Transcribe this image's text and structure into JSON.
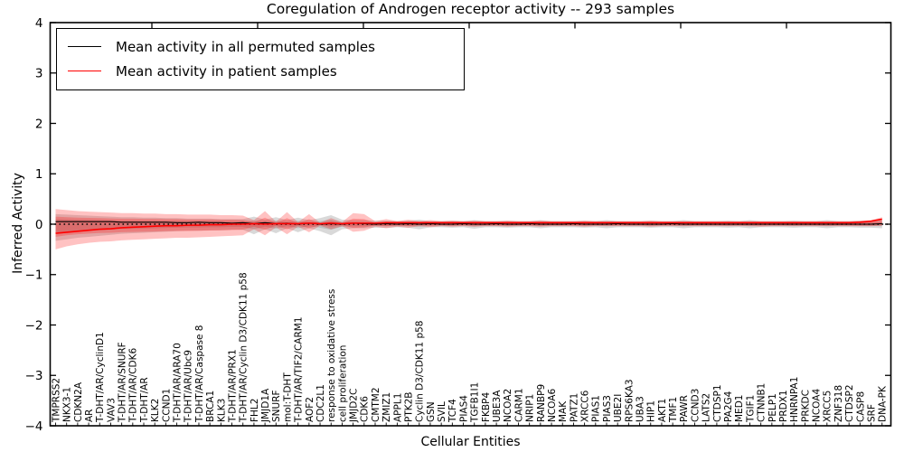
{
  "figure": {
    "title": "Coregulation of Androgen receptor activity -- 293 samples"
  },
  "legend": {
    "items": [
      {
        "label": "Mean activity in all permuted samples",
        "color": "#000000"
      },
      {
        "label": "Mean activity in patient samples",
        "color": "#ff0000"
      }
    ]
  },
  "chart_data": {
    "type": "line",
    "title": "Coregulation of Androgen receptor activity -- 293 samples",
    "xlabel": "Cellular Entities",
    "ylabel": "Inferred Activity",
    "ylim": [
      -4,
      4
    ],
    "yticks": [
      4,
      3,
      2,
      1,
      0,
      -1,
      -2,
      -3,
      -4
    ],
    "ytick_labels": [
      "4",
      "3",
      "2",
      "1",
      "0",
      "−1",
      "−2",
      "−3",
      "−4"
    ],
    "grid": false,
    "legend_position": "upper left",
    "zero_line": true,
    "categories": [
      "TMPRSS2",
      "NKX3-1",
      "CDKN2A",
      "AR",
      "T-DHT/AR/CyclinD1",
      "VAV3",
      "T-DHT/AR/SNURF",
      "T-DHT/AR/CDK6",
      "T-DHT/AR",
      "KLK2",
      "CCND1",
      "T-DHT/AR/ARA70",
      "T-DHT/AR/Ubc9",
      "T-DHT/AR/Caspase 8",
      "BRCA1",
      "KLK3",
      "T-DHT/AR/PRX1",
      "T-DHT/AR/Cyclin D3/CDK11 p58",
      "FHL2",
      "JMJD1A",
      "SNURF",
      "mol:T-DHT",
      "T-DHT/AR/TIF2/CARM1",
      "AOF2",
      "CDC2L1",
      "response to oxidative stress",
      "cell proliferation",
      "JMJD2C",
      "CDK6",
      "CMTM2",
      "ZMIZ1",
      "APPL1",
      "PTK2B",
      "Cyclin D3/CDK11 p58",
      "GSN",
      "SVIL",
      "TCF4",
      "PIAS4",
      "TGFB1I1",
      "FKBP4",
      "UBE3A",
      "NCOA2",
      "CARM1",
      "NRIP1",
      "RANBP9",
      "NCOA6",
      "MAK",
      "PATZ1",
      "XRCC6",
      "PIAS1",
      "PIAS3",
      "UBE2I",
      "RPS6KA3",
      "UBA3",
      "HIP1",
      "AKT1",
      "TMF1",
      "PAWR",
      "CCND3",
      "LATS2",
      "CTDSP1",
      "PA2G4",
      "MED1",
      "TGIF1",
      "CTNNB1",
      "PELP1",
      "PRDX1",
      "HNRNPA1",
      "PRKDC",
      "NCOA4",
      "XRCC5",
      "ZNF318",
      "CTDSP2",
      "CASP8",
      "SRF",
      "DNA-PK"
    ],
    "series": [
      {
        "name": "Mean activity in all permuted samples",
        "color": "#000000",
        "values": [
          0.05,
          0.05,
          0.05,
          0.05,
          0.05,
          0.05,
          0.04,
          0.04,
          0.04,
          0.04,
          0.04,
          0.03,
          0.03,
          0.04,
          0.03,
          0.03,
          0.02,
          0.03,
          0.01,
          0.03,
          0.01,
          0.02,
          0,
          0.02,
          0,
          0.01,
          0,
          0.02,
          0.01,
          0,
          0.01,
          0,
          0.01,
          0,
          0.01,
          0,
          0,
          0.01,
          0,
          0,
          0.01,
          0,
          0,
          0.01,
          0,
          0,
          0,
          0.01,
          0,
          0,
          0,
          0.01,
          0,
          0,
          0,
          0,
          0.01,
          0,
          0,
          0,
          0,
          0,
          0,
          0,
          0,
          0,
          0,
          0,
          0,
          0,
          0,
          0,
          0,
          0,
          0,
          0.01
        ]
      },
      {
        "name": "Mean activity in patient samples",
        "color": "#ff0000",
        "values": [
          -0.18,
          -0.16,
          -0.14,
          -0.12,
          -0.1,
          -0.09,
          -0.07,
          -0.06,
          -0.05,
          -0.04,
          -0.03,
          -0.03,
          -0.02,
          -0.02,
          -0.01,
          -0.01,
          0,
          0,
          0.01,
          0,
          0.01,
          0.01,
          0.01,
          0.02,
          0.01,
          0.02,
          0.01,
          0.02,
          0.02,
          0.02,
          0.03,
          0.03,
          0.03,
          0.03,
          0.03,
          0.03,
          0.03,
          0.03,
          0.03,
          0.03,
          0.03,
          0.03,
          0.03,
          0.03,
          0.03,
          0.03,
          0.03,
          0.03,
          0.03,
          0.03,
          0.03,
          0.03,
          0.03,
          0.03,
          0.03,
          0.03,
          0.03,
          0.03,
          0.03,
          0.03,
          0.03,
          0.03,
          0.03,
          0.03,
          0.03,
          0.03,
          0.03,
          0.03,
          0.03,
          0.03,
          0.03,
          0.03,
          0.03,
          0.04,
          0.06,
          0.1
        ]
      }
    ],
    "bands": [
      {
        "name": "permuted-samples-band",
        "color": "#808080",
        "opacity": 0.3,
        "low": [
          -0.33,
          -0.3,
          -0.27,
          -0.25,
          -0.23,
          -0.21,
          -0.19,
          -0.18,
          -0.17,
          -0.16,
          -0.15,
          -0.14,
          -0.13,
          -0.13,
          -0.12,
          -0.12,
          -0.11,
          -0.11,
          -0.2,
          -0.1,
          -0.18,
          -0.08,
          -0.16,
          -0.08,
          -0.14,
          -0.22,
          -0.1,
          -0.08,
          -0.08,
          -0.07,
          -0.07,
          -0.06,
          -0.07,
          -0.1,
          -0.06,
          -0.06,
          -0.07,
          -0.06,
          -0.09,
          -0.06,
          -0.06,
          -0.07,
          -0.06,
          -0.06,
          -0.08,
          -0.06,
          -0.06,
          -0.06,
          -0.07,
          -0.06,
          -0.08,
          -0.06,
          -0.06,
          -0.06,
          -0.07,
          -0.06,
          -0.06,
          -0.08,
          -0.06,
          -0.06,
          -0.06,
          -0.07,
          -0.06,
          -0.08,
          -0.06,
          -0.06,
          -0.06,
          -0.07,
          -0.06,
          -0.06,
          -0.08,
          -0.06,
          -0.06,
          -0.07,
          -0.07,
          -0.08
        ],
        "high": [
          0.2,
          0.19,
          0.18,
          0.17,
          0.16,
          0.15,
          0.14,
          0.14,
          0.13,
          0.13,
          0.12,
          0.12,
          0.11,
          0.11,
          0.11,
          0.1,
          0.1,
          0.1,
          0.15,
          0.09,
          0.14,
          0.08,
          0.13,
          0.08,
          0.12,
          0.18,
          0.09,
          0.08,
          0.08,
          0.07,
          0.07,
          0.06,
          0.07,
          0.09,
          0.06,
          0.06,
          0.07,
          0.06,
          0.08,
          0.06,
          0.06,
          0.07,
          0.06,
          0.06,
          0.08,
          0.06,
          0.06,
          0.06,
          0.07,
          0.06,
          0.08,
          0.06,
          0.06,
          0.06,
          0.07,
          0.06,
          0.06,
          0.08,
          0.06,
          0.06,
          0.06,
          0.07,
          0.06,
          0.08,
          0.06,
          0.06,
          0.06,
          0.07,
          0.06,
          0.06,
          0.08,
          0.06,
          0.06,
          0.07,
          0.07,
          0.1
        ]
      },
      {
        "name": "patient-samples-band",
        "color": "#ff0000",
        "opacity": 0.24,
        "low": [
          -0.5,
          -0.44,
          -0.4,
          -0.37,
          -0.35,
          -0.34,
          -0.32,
          -0.31,
          -0.3,
          -0.29,
          -0.28,
          -0.27,
          -0.27,
          -0.26,
          -0.25,
          -0.24,
          -0.23,
          -0.22,
          -0.1,
          -0.22,
          -0.06,
          -0.2,
          -0.05,
          -0.16,
          -0.03,
          -0.1,
          -0.04,
          -0.15,
          -0.13,
          -0.05,
          -0.08,
          -0.05,
          -0.07,
          -0.04,
          -0.06,
          -0.04,
          -0.05,
          -0.04,
          -0.05,
          -0.04,
          -0.04,
          -0.05,
          -0.04,
          -0.04,
          -0.05,
          -0.04,
          -0.04,
          -0.04,
          -0.05,
          -0.04,
          -0.04,
          -0.04,
          -0.04,
          -0.04,
          -0.05,
          -0.04,
          -0.04,
          -0.04,
          -0.04,
          -0.04,
          -0.04,
          -0.04,
          -0.04,
          -0.04,
          -0.05,
          -0.04,
          -0.04,
          -0.04,
          -0.04,
          -0.04,
          -0.04,
          -0.04,
          -0.04,
          -0.04,
          -0.04,
          -0.03
        ],
        "high": [
          0.3,
          0.28,
          0.26,
          0.25,
          0.24,
          0.23,
          0.22,
          0.22,
          0.21,
          0.21,
          0.2,
          0.2,
          0.19,
          0.19,
          0.19,
          0.18,
          0.18,
          0.17,
          0.08,
          0.26,
          0.05,
          0.24,
          0.04,
          0.2,
          0.03,
          0.12,
          0.04,
          0.22,
          0.2,
          0.06,
          0.1,
          0.06,
          0.09,
          0.06,
          0.08,
          0.06,
          0.07,
          0.06,
          0.07,
          0.06,
          0.06,
          0.07,
          0.06,
          0.06,
          0.07,
          0.06,
          0.06,
          0.06,
          0.07,
          0.06,
          0.06,
          0.06,
          0.06,
          0.06,
          0.07,
          0.06,
          0.06,
          0.06,
          0.06,
          0.06,
          0.06,
          0.06,
          0.06,
          0.06,
          0.06,
          0.06,
          0.06,
          0.06,
          0.06,
          0.06,
          0.06,
          0.06,
          0.06,
          0.07,
          0.08,
          0.14
        ]
      }
    ]
  }
}
